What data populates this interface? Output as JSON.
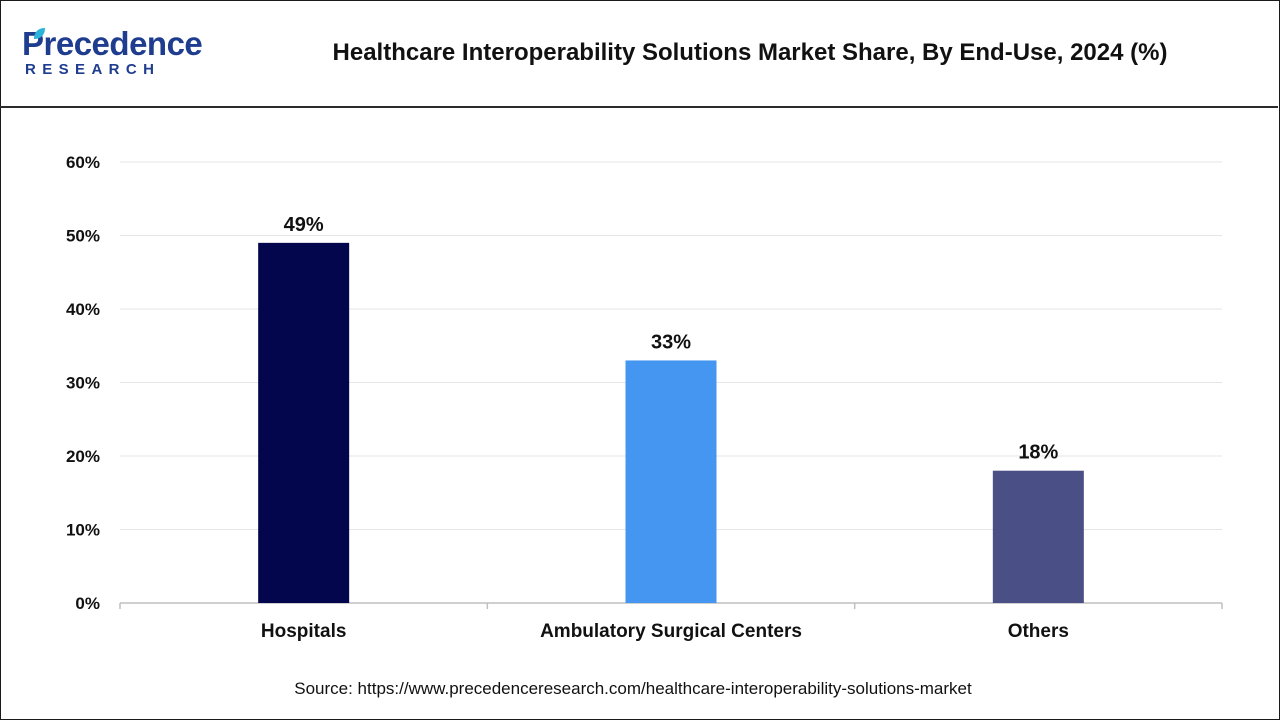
{
  "brand": {
    "logo_main": "Precedence",
    "logo_sub": "RESEARCH",
    "logo_color": "#1f3d8f",
    "logo_leaf_color": "#2bb3d9"
  },
  "chart_data": {
    "type": "bar",
    "title": "Healthcare Interoperability Solutions Market Share, By End-Use, 2024 (%)",
    "categories": [
      "Hospitals",
      "Ambulatory Surgical Centers",
      "Others"
    ],
    "values": [
      49,
      33,
      18
    ],
    "value_labels": [
      "49%",
      "33%",
      "18%"
    ],
    "colors": [
      "#03064d",
      "#4596f0",
      "#4a4f86"
    ],
    "ylim": [
      0,
      60
    ],
    "yticks": [
      0,
      10,
      20,
      30,
      40,
      50,
      60
    ],
    "ytick_labels": [
      "0%",
      "10%",
      "20%",
      "30%",
      "40%",
      "50%",
      "60%"
    ],
    "xlabel": "",
    "ylabel": "",
    "grid": true,
    "grid_color": "#e6e6e6",
    "axis_color": "#bfbfbf"
  },
  "source": "Source: https://www.precedenceresearch.com/healthcare-interoperability-solutions-market"
}
